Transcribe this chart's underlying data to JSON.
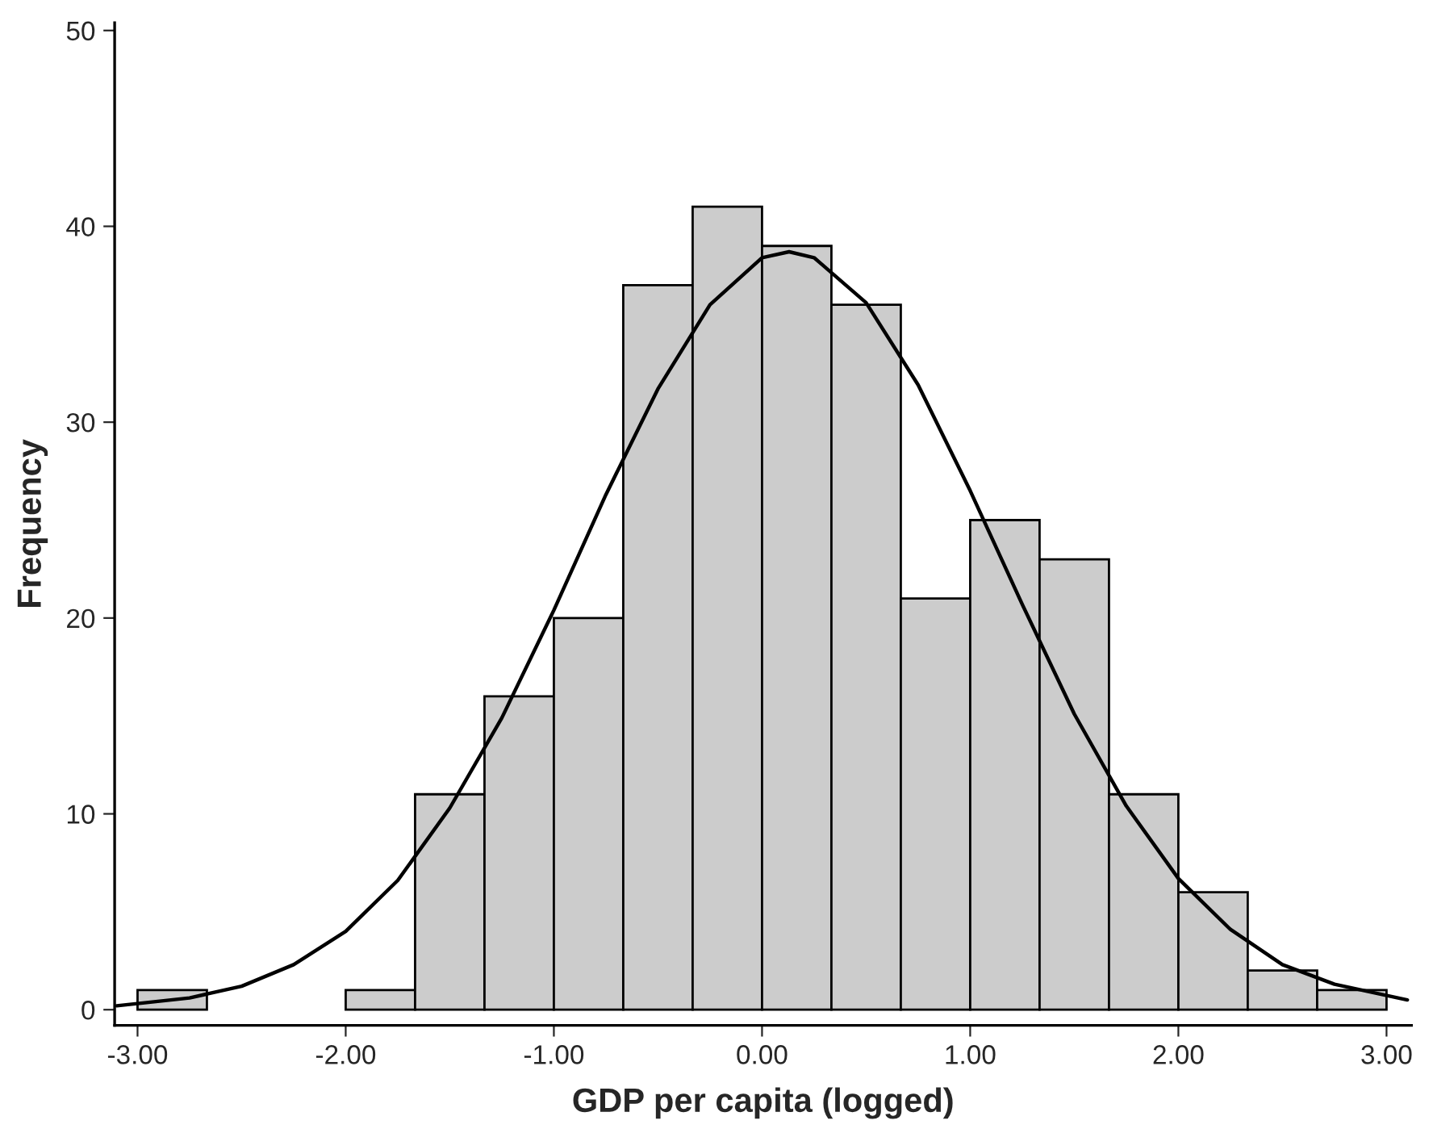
{
  "chart_data": {
    "type": "histogram",
    "xlabel": "GDP per capita (logged)",
    "ylabel": "Frequency",
    "bins": [
      -3.0,
      -2.6667,
      -2.3333,
      -2.0,
      -1.6667,
      -1.3333,
      -1.0,
      -0.6667,
      -0.3333,
      0.0,
      0.3333,
      0.6667,
      1.0,
      1.3333,
      1.6667,
      2.0,
      2.3333,
      2.6667,
      3.0
    ],
    "values": [
      1,
      0,
      0,
      1,
      11,
      16,
      20,
      37,
      41,
      39,
      36,
      21,
      25,
      23,
      11,
      6,
      2,
      1
    ],
    "color": "#cccccc",
    "series": [
      {
        "type": "line",
        "color": "#000000",
        "x": [
          -3.1,
          -2.75,
          -2.5,
          -2.25,
          -2.0,
          -1.75,
          -1.5,
          -1.25,
          -1.0,
          -0.75,
          -0.5,
          -0.25,
          0.0,
          0.13,
          0.25,
          0.5,
          0.75,
          1.0,
          1.25,
          1.5,
          1.75,
          2.0,
          2.25,
          2.5,
          2.75,
          3.1
        ],
        "values": [
          0.2,
          0.6,
          1.2,
          2.3,
          4.0,
          6.6,
          10.3,
          14.9,
          20.4,
          26.3,
          31.7,
          36.0,
          38.4,
          38.7,
          38.4,
          36.1,
          31.9,
          26.5,
          20.7,
          15.1,
          10.4,
          6.7,
          4.1,
          2.3,
          1.3,
          0.5
        ]
      }
    ],
    "xlim": [
      -3.11,
      3.12
    ],
    "ylim": [
      -0.8,
      50.4
    ],
    "xticks": [
      {
        "value": -3,
        "label": "-3.00"
      },
      {
        "value": -2,
        "label": "-2.00"
      },
      {
        "value": -1,
        "label": "-1.00"
      },
      {
        "value": 0,
        "label": "0.00"
      },
      {
        "value": 1,
        "label": "1.00"
      },
      {
        "value": 2,
        "label": "2.00"
      },
      {
        "value": 3,
        "label": "3.00"
      }
    ],
    "yticks": [
      0,
      10,
      20,
      30,
      40,
      50
    ],
    "grid": false,
    "legend": false
  }
}
